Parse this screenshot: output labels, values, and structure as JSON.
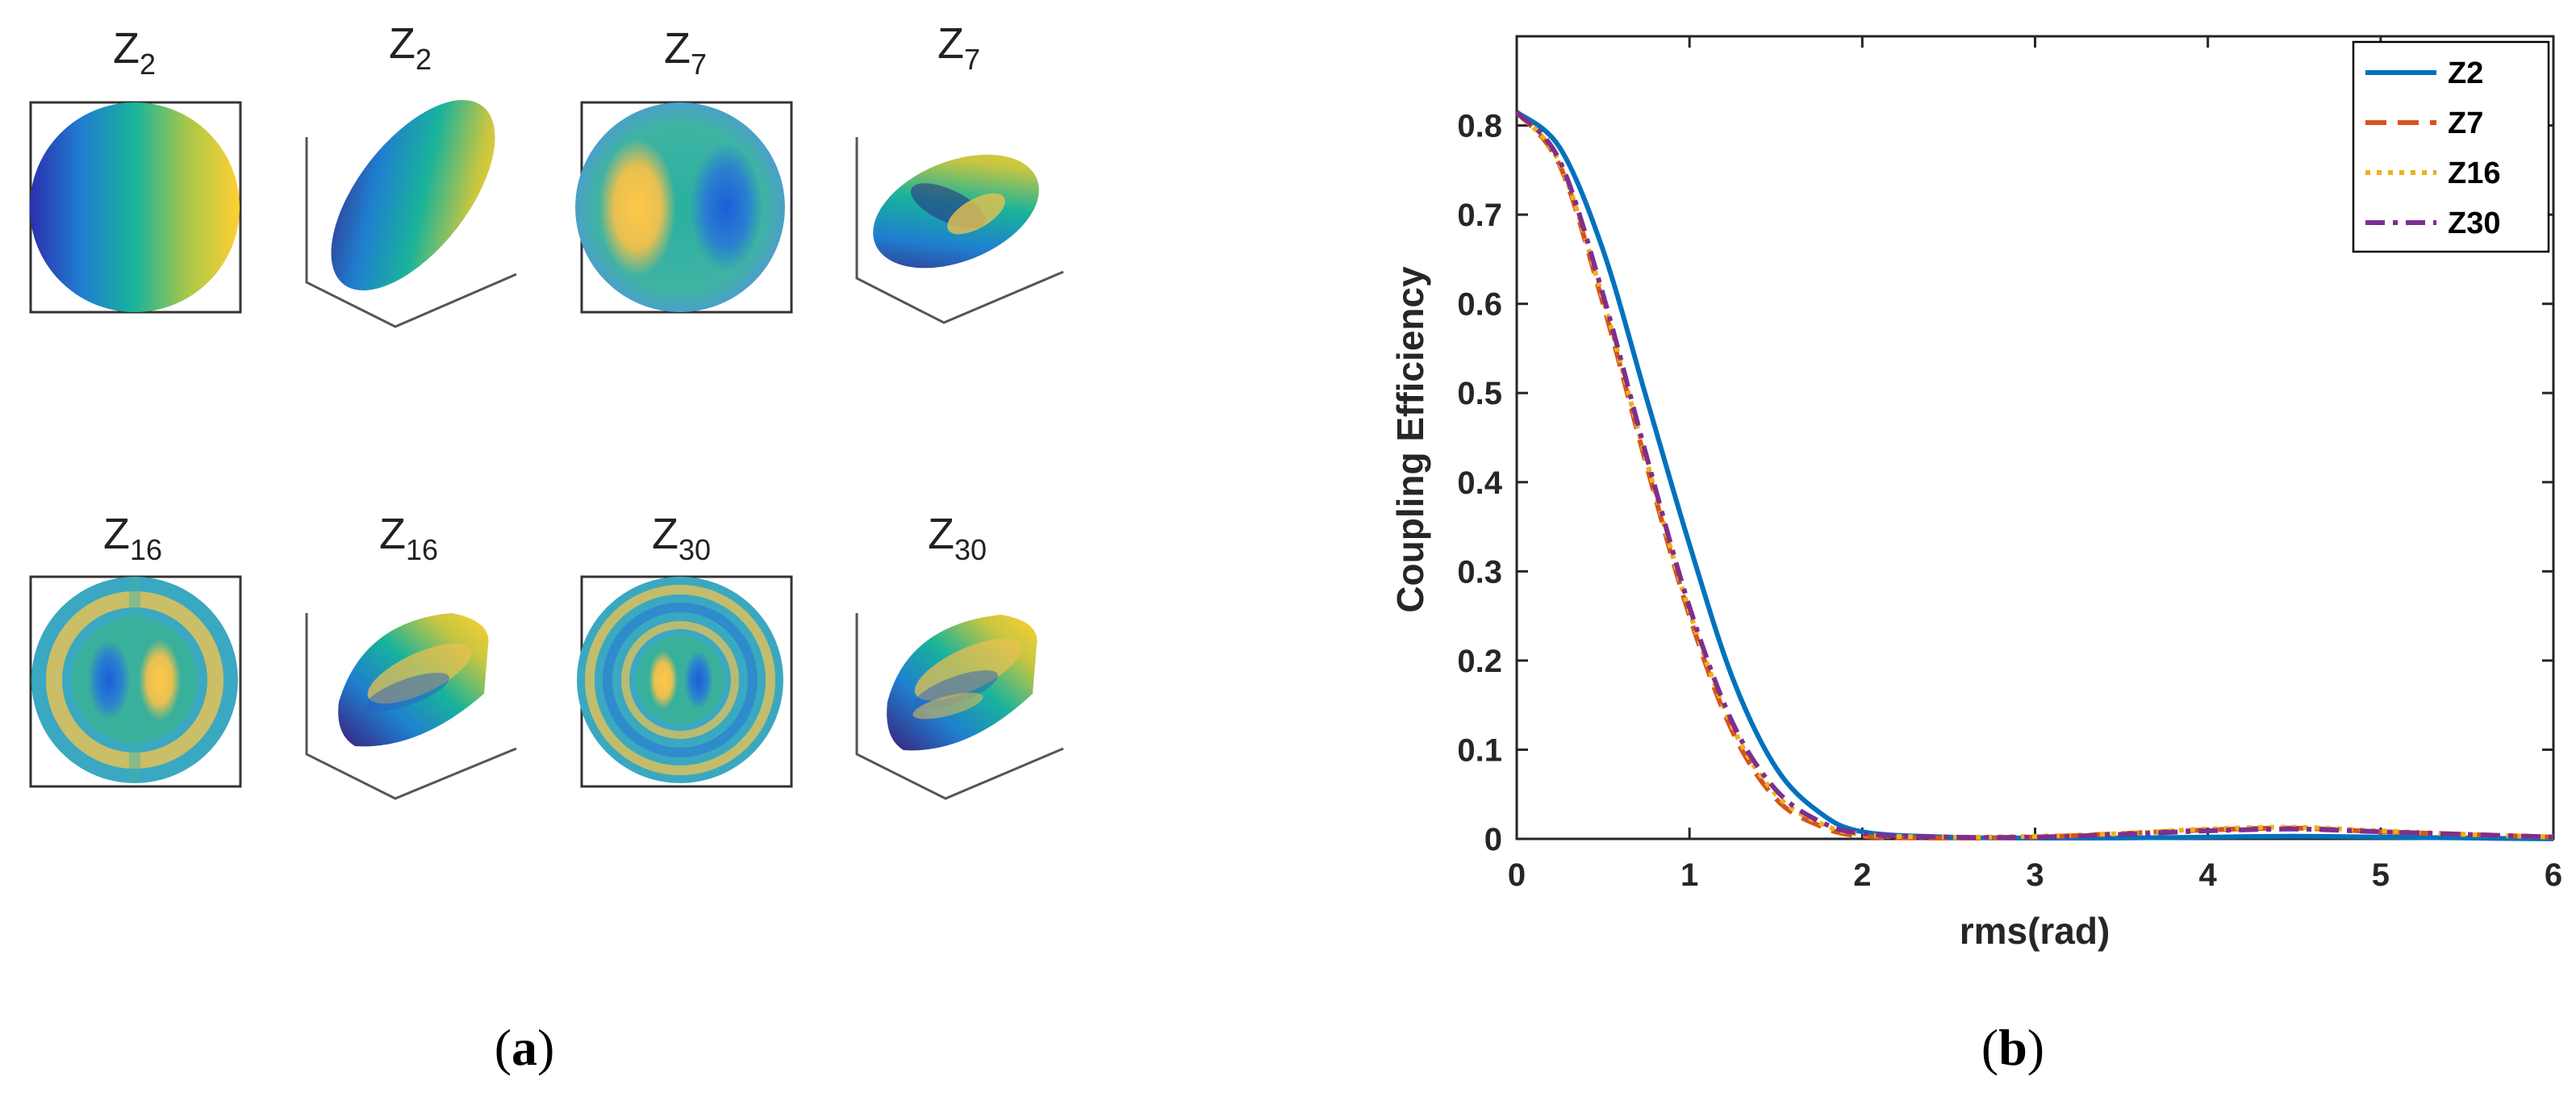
{
  "panel_a": {
    "label_open": "(",
    "label_letter": "a",
    "label_close": ")",
    "tiles": [
      {
        "name": "z2-2d",
        "letter": "Z",
        "sub": "2",
        "kind": "flat"
      },
      {
        "name": "z2-3d",
        "letter": "Z",
        "sub": "2",
        "kind": "surface"
      },
      {
        "name": "z7-2d",
        "letter": "Z",
        "sub": "7",
        "kind": "flat"
      },
      {
        "name": "z7-3d",
        "letter": "Z",
        "sub": "7",
        "kind": "surface"
      },
      {
        "name": "z16-2d",
        "letter": "Z",
        "sub": "16",
        "kind": "flat"
      },
      {
        "name": "z16-3d",
        "letter": "Z",
        "sub": "16",
        "kind": "surface"
      },
      {
        "name": "z30-2d",
        "letter": "Z",
        "sub": "30",
        "kind": "flat"
      },
      {
        "name": "z30-3d",
        "letter": "Z",
        "sub": "30",
        "kind": "surface"
      }
    ]
  },
  "panel_b": {
    "label_open": "(",
    "label_letter": "b",
    "label_close": ")"
  },
  "chart_data": {
    "type": "line",
    "title": "",
    "xlabel": "rms(rad)",
    "ylabel": "Coupling Efficiency",
    "xlim": [
      0,
      6
    ],
    "ylim": [
      0,
      0.9
    ],
    "xticks": [
      0,
      1,
      2,
      3,
      4,
      5,
      6
    ],
    "yticks": [
      0,
      0.1,
      0.2,
      0.3,
      0.4,
      0.5,
      0.6,
      0.7,
      0.8
    ],
    "grid": false,
    "legend_position": "top-right",
    "series": [
      {
        "name": "Z2",
        "color": "#0072BD",
        "style": "solid",
        "x": [
          0,
          0.25,
          0.5,
          0.75,
          1.0,
          1.25,
          1.5,
          1.75,
          2.0,
          2.5,
          3,
          3.5,
          4,
          4.5,
          5,
          5.5,
          6
        ],
        "y": [
          0.815,
          0.775,
          0.66,
          0.495,
          0.33,
          0.18,
          0.08,
          0.03,
          0.008,
          0.002,
          0.001,
          0.001,
          0.002,
          0.003,
          0.002,
          0.001,
          0.0
        ]
      },
      {
        "name": "Z7",
        "color": "#D95319",
        "style": "dashed",
        "x": [
          0,
          0.25,
          0.5,
          0.75,
          1.0,
          1.25,
          1.5,
          1.75,
          2.0,
          2.5,
          3,
          3.5,
          4,
          4.5,
          5,
          5.5,
          6
        ],
        "y": [
          0.815,
          0.755,
          0.6,
          0.42,
          0.25,
          0.12,
          0.045,
          0.015,
          0.003,
          0.001,
          0.002,
          0.006,
          0.01,
          0.012,
          0.008,
          0.005,
          0.002
        ]
      },
      {
        "name": "Z16",
        "color": "#EDB120",
        "style": "dotted",
        "x": [
          0,
          0.25,
          0.5,
          0.75,
          1.0,
          1.25,
          1.5,
          1.75,
          2.0,
          2.5,
          3,
          3.5,
          4,
          4.5,
          5,
          5.5,
          6
        ],
        "y": [
          0.815,
          0.757,
          0.605,
          0.425,
          0.255,
          0.125,
          0.05,
          0.018,
          0.005,
          0.002,
          0.003,
          0.006,
          0.011,
          0.013,
          0.009,
          0.005,
          0.002
        ]
      },
      {
        "name": "Z30",
        "color": "#7E2F8E",
        "style": "dashdot",
        "x": [
          0,
          0.25,
          0.5,
          0.75,
          1.0,
          1.25,
          1.5,
          1.75,
          2.0,
          2.5,
          3,
          3.5,
          4,
          4.5,
          5,
          5.5,
          6
        ],
        "y": [
          0.815,
          0.76,
          0.61,
          0.43,
          0.26,
          0.13,
          0.055,
          0.02,
          0.006,
          0.002,
          0.002,
          0.005,
          0.009,
          0.011,
          0.008,
          0.005,
          0.002
        ]
      }
    ]
  }
}
